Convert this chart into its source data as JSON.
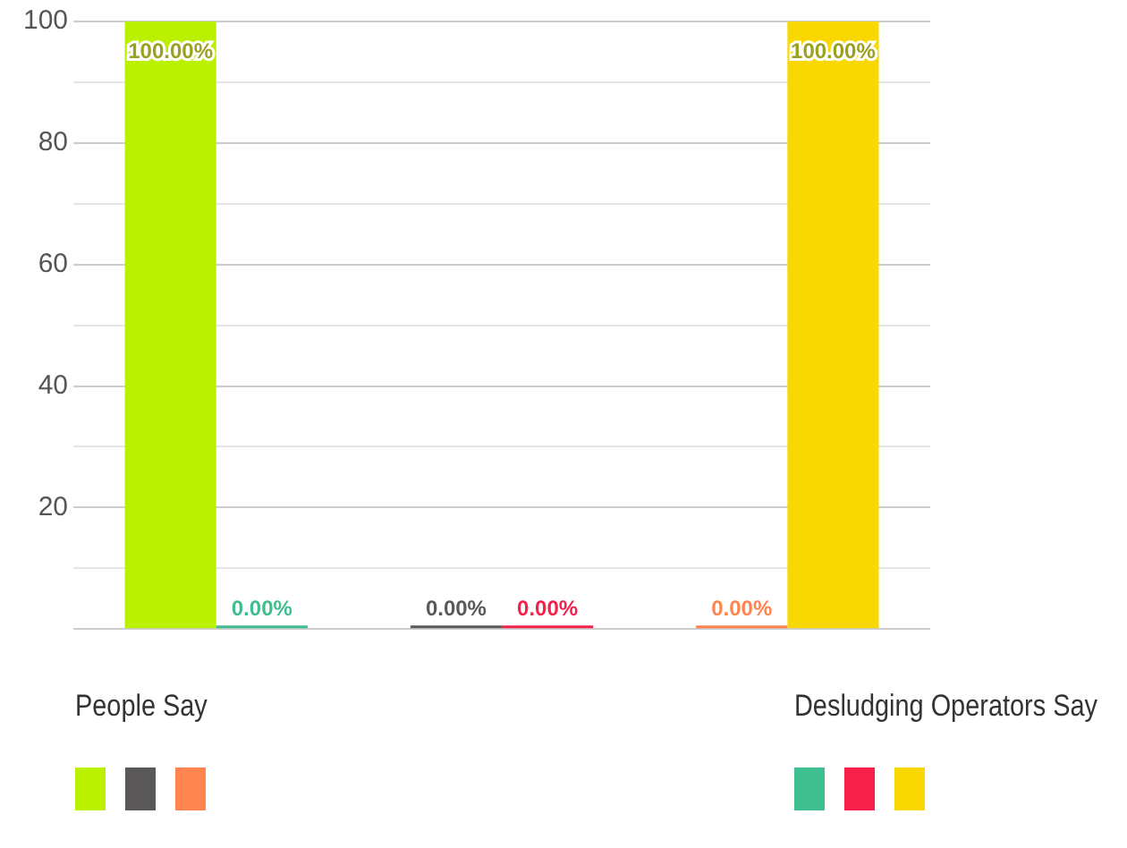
{
  "chart_data": {
    "type": "bar",
    "categories": [
      null,
      null,
      null
    ],
    "series": [
      {
        "name": "People Say",
        "colors": [
          "#bbf000",
          "#5a5858",
          "#ff8450"
        ],
        "values": [
          100,
          0,
          0
        ],
        "value_labels": [
          "100.00%",
          "0.00%",
          "0.00%"
        ]
      },
      {
        "name": "Desludging Operators Say",
        "colors": [
          "#3fbf8f",
          "#f5214a",
          "#f8d800"
        ],
        "values": [
          0,
          0,
          100
        ],
        "value_labels": [
          "0.00%",
          "0.00%",
          "100.00%"
        ]
      }
    ],
    "ylim": [
      0,
      100
    ],
    "yticks": [
      {
        "value": 0,
        "label": null
      },
      {
        "value": 10,
        "label": null
      },
      20,
      {
        "value": 30,
        "label": null
      },
      40,
      {
        "value": 50,
        "label": null
      },
      60,
      {
        "value": 70,
        "label": null
      },
      80,
      {
        "value": 90,
        "label": null
      },
      100
    ],
    "grid": "y",
    "legend": "bottom"
  }
}
